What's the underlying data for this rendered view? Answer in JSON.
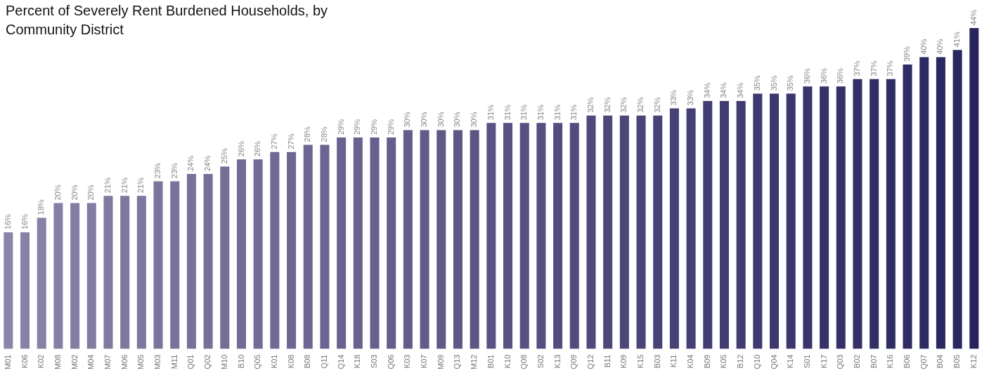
{
  "chart_data": {
    "type": "bar",
    "title": "Percent of Severely Rent Burdened Households, by Community District",
    "categories": [
      "M01",
      "K06",
      "K02",
      "M08",
      "M02",
      "M04",
      "M07",
      "M06",
      "M05",
      "M03",
      "M11",
      "Q01",
      "Q02",
      "M10",
      "B10",
      "Q05",
      "K01",
      "K08",
      "B08",
      "Q11",
      "Q14",
      "K18",
      "S03",
      "Q06",
      "K03",
      "K07",
      "M09",
      "Q13",
      "M12",
      "B01",
      "K10",
      "Q08",
      "S02",
      "K13",
      "Q09",
      "Q12",
      "B11",
      "K09",
      "K15",
      "B03",
      "K11",
      "K04",
      "B09",
      "K05",
      "B12",
      "Q10",
      "Q04",
      "K14",
      "S01",
      "K17",
      "Q03",
      "B02",
      "B07",
      "K16",
      "B06",
      "Q07",
      "B04",
      "B05",
      "K12"
    ],
    "values": [
      16,
      16,
      18,
      20,
      20,
      20,
      21,
      21,
      21,
      23,
      23,
      24,
      24,
      25,
      26,
      26,
      27,
      27,
      28,
      28,
      29,
      29,
      29,
      29,
      30,
      30,
      30,
      30,
      30,
      31,
      31,
      31,
      31,
      31,
      31,
      32,
      32,
      32,
      32,
      32,
      33,
      33,
      34,
      34,
      34,
      35,
      35,
      35,
      36,
      36,
      36,
      37,
      37,
      37,
      39,
      40,
      40,
      41,
      44
    ],
    "value_labels": [
      "16%",
      "16%",
      "18%",
      "20%",
      "20%",
      "20%",
      "21%",
      "21%",
      "21%",
      "23%",
      "23%",
      "24%",
      "24%",
      "25%",
      "26%",
      "26%",
      "27%",
      "27%",
      "28%",
      "28%",
      "29%",
      "29%",
      "29%",
      "29%",
      "30%",
      "30%",
      "30%",
      "30%",
      "30%",
      "31%",
      "31%",
      "31%",
      "31%",
      "31%",
      "31%",
      "32%",
      "32%",
      "32%",
      "32%",
      "32%",
      "33%",
      "33%",
      "34%",
      "34%",
      "34%",
      "35%",
      "35%",
      "35%",
      "36%",
      "36%",
      "36%",
      "37%",
      "37%",
      "37%",
      "39%",
      "40%",
      "40%",
      "41%",
      "44%"
    ],
    "colors": [
      "#8a84a8",
      "#8882a7",
      "#8781a5",
      "#857fa4",
      "#837da3",
      "#827ca2",
      "#807aa0",
      "#7e789f",
      "#7c779e",
      "#7b759d",
      "#79739b",
      "#77729a",
      "#767099",
      "#746e97",
      "#726d96",
      "#716b95",
      "#6f6a94",
      "#6d6892",
      "#6c6691",
      "#6a6590",
      "#68638e",
      "#67618d",
      "#65608c",
      "#635e8b",
      "#615c89",
      "#605b88",
      "#5e5987",
      "#5c5786",
      "#5b5684",
      "#595483",
      "#575282",
      "#565180",
      "#544f7f",
      "#524d7e",
      "#514c7d",
      "#4f4a7b",
      "#4d487a",
      "#4b4779",
      "#4a4578",
      "#484376",
      "#464275",
      "#454074",
      "#433e72",
      "#413d71",
      "#403b70",
      "#3e3a6f",
      "#3c386d",
      "#3b366c",
      "#39356b",
      "#373369",
      "#353168",
      "#343067",
      "#322e66",
      "#302c64",
      "#2f2b63",
      "#2d2962",
      "#2b2760",
      "#2a265f",
      "#28245e"
    ],
    "grid": false,
    "legend": false
  }
}
